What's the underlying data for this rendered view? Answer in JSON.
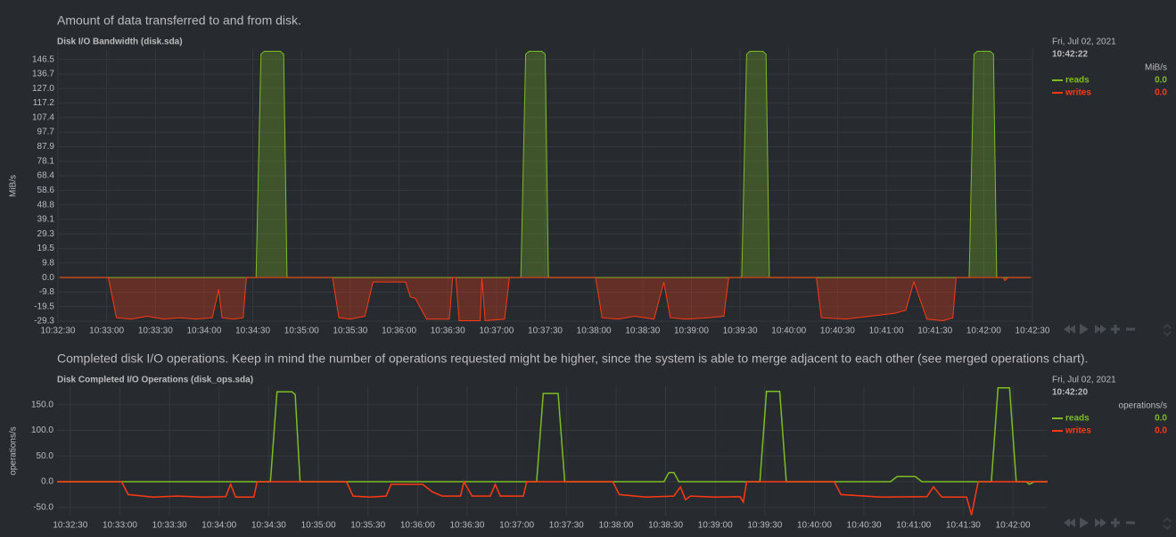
{
  "chart_data": [
    {
      "type": "line",
      "description": "Amount of data transferred to and from disk.",
      "title": "Disk I/O Bandwidth (disk.sda)",
      "ylabel": "MiB/s",
      "legend_date": "Fri, Jul 02, 2021",
      "legend_time": "10:42:22",
      "fill": true,
      "grid": true,
      "xlim": [
        "10:32:30",
        "10:42:30"
      ],
      "xticks": [
        "10:32:30",
        "10:33:00",
        "10:33:30",
        "10:34:00",
        "10:34:30",
        "10:35:00",
        "10:35:30",
        "10:36:00",
        "10:36:30",
        "10:37:00",
        "10:37:30",
        "10:38:00",
        "10:38:30",
        "10:39:00",
        "10:39:30",
        "10:40:00",
        "10:40:30",
        "10:41:00",
        "10:41:30",
        "10:42:00",
        "10:42:30"
      ],
      "ylim": [
        -30.5,
        153.5
      ],
      "yticks": [
        -29.3,
        -19.5,
        -9.8,
        {
          "value": 0,
          "label": "0.0"
        },
        9.8,
        19.5,
        29.3,
        39.1,
        48.8,
        58.6,
        68.4,
        78.1,
        87.9,
        97.7,
        107.4,
        117.2,
        {
          "value": 127,
          "label": "127.0"
        },
        136.7,
        146.5
      ],
      "series": [
        {
          "name": "reads",
          "color": "#7cbd21",
          "latest": {
            "value": 0,
            "label": "0.0"
          },
          "x": [
            "10:32:31",
            "10:34:32",
            "10:34:35",
            "10:34:37",
            "10:34:47",
            "10:34:49",
            "10:34:51",
            "10:37:15",
            "10:37:18",
            "10:37:20",
            "10:37:28",
            "10:37:30",
            "10:37:32",
            "10:39:31",
            "10:39:34",
            "10:39:36",
            "10:39:44",
            "10:39:46",
            "10:39:48",
            "10:41:51",
            "10:41:54",
            "10:41:56",
            "10:42:04",
            "10:42:06",
            "10:42:08",
            "10:42:29"
          ],
          "values": [
            0,
            0,
            150,
            152,
            152,
            150,
            0,
            0,
            150,
            152,
            152,
            150,
            0,
            0,
            150,
            152,
            152,
            150,
            0,
            0,
            150,
            152,
            152,
            150,
            0,
            0
          ]
        },
        {
          "name": "writes",
          "color": "#fe3912",
          "latest": {
            "value": 0,
            "label": "0.0"
          },
          "x": [
            "10:32:31",
            "10:33:01",
            "10:33:06",
            "10:33:15",
            "10:33:25",
            "10:33:35",
            "10:33:45",
            "10:33:55",
            "10:34:05",
            "10:34:09",
            "10:34:11",
            "10:34:18",
            "10:34:24",
            "10:34:26",
            "10:35:19",
            "10:35:23",
            "10:35:30",
            "10:35:39",
            "10:35:44",
            "10:36:04",
            "10:36:07",
            "10:36:10",
            "10:36:17",
            "10:36:31",
            "10:36:33",
            "10:36:35",
            "10:36:37",
            "10:36:50",
            "10:36:51",
            "10:36:53",
            "10:37:05",
            "10:37:08",
            "10:38:01",
            "10:38:05",
            "10:38:15",
            "10:38:25",
            "10:38:37",
            "10:38:43",
            "10:38:47",
            "10:38:57",
            "10:39:10",
            "10:39:20",
            "10:39:23",
            "10:40:17",
            "10:40:20",
            "10:40:35",
            "10:40:50",
            "10:41:05",
            "10:41:12",
            "10:41:17",
            "10:41:25",
            "10:41:35",
            "10:41:41",
            "10:41:43",
            "10:42:12",
            "10:42:13",
            "10:42:15",
            "10:42:29"
          ],
          "values": [
            0,
            0,
            -27,
            -28,
            -26,
            -28,
            -27,
            -28,
            -27,
            -8,
            -27,
            -28,
            -27,
            0,
            0,
            -27,
            -28,
            -26,
            -3,
            -3,
            -13,
            -14,
            -28,
            -28,
            0,
            0,
            -29,
            -29,
            0,
            -29,
            -28,
            0,
            0,
            -27,
            -28,
            -26,
            -28,
            -3,
            -27,
            -28,
            -27,
            -26,
            0,
            0,
            -27,
            -28,
            -26,
            -24,
            -22,
            -3,
            -28,
            -29,
            -27,
            0,
            0,
            -2,
            0,
            0
          ]
        }
      ]
    },
    {
      "type": "line",
      "description": "Completed disk I/O operations. Keep in mind the number of operations requested might be higher, since the system is able to merge adjacent to each other (see merged operations chart).",
      "title": "Disk Completed I/O Operations (disk_ops.sda)",
      "ylabel": "operations/s",
      "legend_date": "Fri, Jul 02, 2021",
      "legend_time": "10:42:20",
      "fill": false,
      "grid": true,
      "xlim": [
        "10:32:22",
        "10:42:21"
      ],
      "xticks": [
        "10:32:30",
        "10:33:00",
        "10:33:30",
        "10:34:00",
        "10:34:30",
        "10:35:00",
        "10:35:30",
        "10:36:00",
        "10:36:30",
        "10:37:00",
        "10:37:30",
        "10:38:00",
        "10:38:30",
        "10:39:00",
        "10:39:30",
        "10:40:00",
        "10:40:30",
        "10:41:00",
        "10:41:30",
        "10:42:00"
      ],
      "ylim": [
        -66,
        186
      ],
      "yticks": [
        {
          "value": -50,
          "label": "-50.0"
        },
        {
          "value": 0,
          "label": "0.0"
        },
        {
          "value": 50,
          "label": "50.0"
        },
        {
          "value": 100,
          "label": "100.0"
        },
        {
          "value": 150,
          "label": "150.0"
        }
      ],
      "series": [
        {
          "name": "reads",
          "color": "#7cbd21",
          "latest": {
            "value": 0,
            "label": "0.0"
          },
          "x": [
            "10:32:22",
            "10:34:31",
            "10:34:35",
            "10:34:44",
            "10:34:46",
            "10:34:49",
            "10:37:12",
            "10:37:16",
            "10:37:25",
            "10:37:29",
            "10:38:29",
            "10:38:32",
            "10:38:35",
            "10:38:38",
            "10:39:27",
            "10:39:31",
            "10:39:39",
            "10:39:43",
            "10:40:46",
            "10:40:50",
            "10:41:01",
            "10:41:05",
            "10:41:47",
            "10:41:51",
            "10:41:58",
            "10:42:02",
            "10:42:08",
            "10:42:10",
            "10:42:13",
            "10:42:21"
          ],
          "values": [
            0,
            0,
            175,
            175,
            170,
            0,
            0,
            172,
            172,
            0,
            0,
            18,
            18,
            0,
            0,
            176,
            176,
            0,
            0,
            10,
            10,
            0,
            0,
            183,
            183,
            0,
            0,
            -5,
            0,
            0
          ]
        },
        {
          "name": "writes",
          "color": "#fe3912",
          "latest": {
            "value": 0,
            "label": "0.0"
          },
          "x": [
            "10:32:22",
            "10:33:01",
            "10:33:05",
            "10:33:20",
            "10:33:35",
            "10:33:50",
            "10:34:04",
            "10:34:07",
            "10:34:10",
            "10:34:21",
            "10:34:23",
            "10:35:17",
            "10:35:21",
            "10:35:31",
            "10:35:41",
            "10:35:44",
            "10:36:03",
            "10:36:09",
            "10:36:15",
            "10:36:26",
            "10:36:28",
            "10:36:33",
            "10:36:44",
            "10:36:47",
            "10:36:50",
            "10:37:04",
            "10:37:06",
            "10:37:58",
            "10:38:02",
            "10:38:18",
            "10:38:35",
            "10:38:39",
            "10:38:42",
            "10:38:45",
            "10:39:00",
            "10:39:15",
            "10:39:17",
            "10:39:19",
            "10:40:12",
            "10:40:16",
            "10:40:40",
            "10:41:08",
            "10:41:12",
            "10:41:17",
            "10:41:32",
            "10:41:35",
            "10:41:39",
            "10:42:21"
          ],
          "values": [
            0,
            0,
            -25,
            -30,
            -28,
            -30,
            -29,
            -5,
            -30,
            -30,
            0,
            0,
            -28,
            -30,
            -28,
            -5,
            -5,
            -20,
            -28,
            -28,
            0,
            -28,
            -28,
            -5,
            -28,
            -28,
            0,
            0,
            -25,
            -30,
            -28,
            -10,
            -35,
            -28,
            -30,
            -29,
            -40,
            0,
            0,
            -25,
            -30,
            -29,
            -10,
            -30,
            -30,
            -65,
            0,
            0
          ]
        }
      ]
    }
  ]
}
